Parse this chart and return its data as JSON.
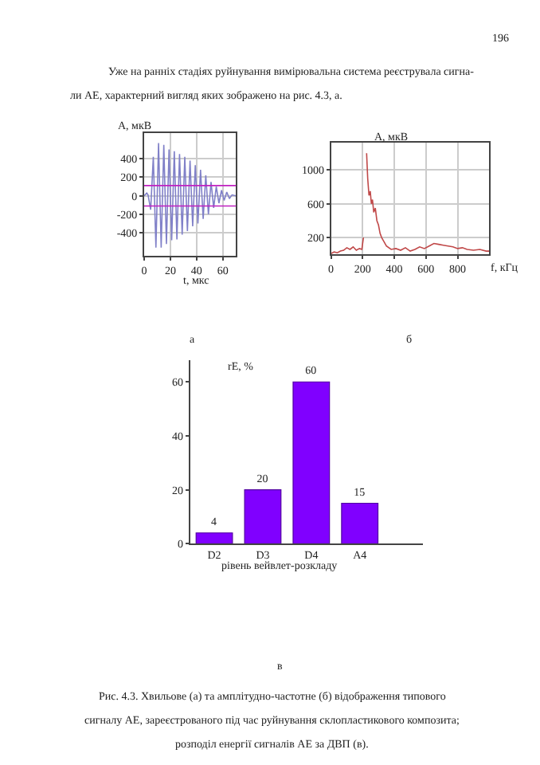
{
  "chart_data": [
    {
      "type": "line",
      "ylabel": "A, мкВ",
      "xlabel": "t, мкс",
      "annotations": [
        "196",
        "Уже на ранніх стадіях руйнування вимірювальна система реєструвала сигна-",
        "ли АЕ, характерний вигляд яких зображено на рис. 4.3, а.",
        "а"
      ],
      "x": [
        0,
        2,
        3,
        5,
        7,
        9,
        11,
        13,
        15,
        17,
        19,
        21,
        23,
        25,
        27,
        29,
        31,
        33,
        35,
        37,
        39,
        41,
        43,
        45,
        47,
        49,
        51,
        53,
        55,
        57,
        59,
        61,
        63,
        65,
        67,
        70
      ],
      "series": [
        {
          "color": "#8080c8",
          "values": [
            0,
            30,
            10,
            -150,
            420,
            -560,
            570,
            -560,
            550,
            -520,
            500,
            -480,
            480,
            -470,
            450,
            -420,
            420,
            -380,
            380,
            -330,
            330,
            -300,
            280,
            -250,
            220,
            -200,
            150,
            -130,
            100,
            -80,
            60,
            -50,
            40,
            -30,
            10,
            0
          ]
        }
      ],
      "xlim": [
        0,
        70
      ],
      "ylim": [
        -650,
        680
      ],
      "xticks": [
        0,
        20,
        40,
        60
      ],
      "yticks": [
        -400,
        -200,
        0,
        200,
        400
      ],
      "grid": true,
      "ref_lines": [
        {
          "axis": "y",
          "value": 110,
          "color": "#c020c0"
        },
        {
          "axis": "y",
          "value": -110,
          "color": "#c020c0"
        }
      ]
    },
    {
      "type": "line",
      "ylabel": "A, мкВ",
      "xlabel": "f, кГц",
      "annotations": [
        "б"
      ],
      "x": [
        0,
        20,
        40,
        60,
        80,
        100,
        120,
        140,
        160,
        180,
        195,
        205,
        212,
        218,
        225,
        232,
        240,
        248,
        255,
        262,
        270,
        280,
        290,
        300,
        310,
        320,
        335,
        350,
        380,
        410,
        440,
        470,
        500,
        530,
        560,
        590,
        620,
        650,
        680,
        710,
        740,
        770,
        800,
        830,
        860,
        900,
        940,
        980,
        1000
      ],
      "series": [
        {
          "color": "#c04848",
          "values": [
            10,
            30,
            20,
            40,
            50,
            80,
            60,
            90,
            50,
            70,
            60,
            200,
            null,
            null,
            1200,
            900,
            700,
            750,
            600,
            650,
            500,
            550,
            400,
            350,
            250,
            200,
            150,
            100,
            60,
            70,
            50,
            80,
            40,
            60,
            90,
            70,
            100,
            130,
            120,
            110,
            100,
            90,
            70,
            80,
            60,
            50,
            60,
            40,
            40
          ]
        }
      ],
      "xlim": [
        0,
        1000
      ],
      "ylim": [
        0,
        1330
      ],
      "xticks": [
        0,
        200,
        400,
        600,
        800
      ],
      "yticks": [
        200,
        600,
        1000
      ],
      "grid": true
    },
    {
      "type": "bar",
      "ylabel": "rE, %",
      "xlabel": "рівень вейвлет-розкладу",
      "annotations": [
        "в",
        "Рис. 4.3. Хвильове (а) та амплітудно-частотне (б) відображення типового",
        "сигналу АЕ, зареєстрованого під час руйнування склопластикового композита;",
        "розподіл енергії сигналів АЕ за ДВП (в)."
      ],
      "categories": [
        "D2",
        "D3",
        "D4",
        "A4"
      ],
      "values": [
        4,
        20,
        60,
        15
      ],
      "color": "#8000ff",
      "ylim": [
        0,
        68
      ],
      "yticks": [
        0,
        20,
        40,
        60
      ],
      "data_labels": true
    }
  ]
}
